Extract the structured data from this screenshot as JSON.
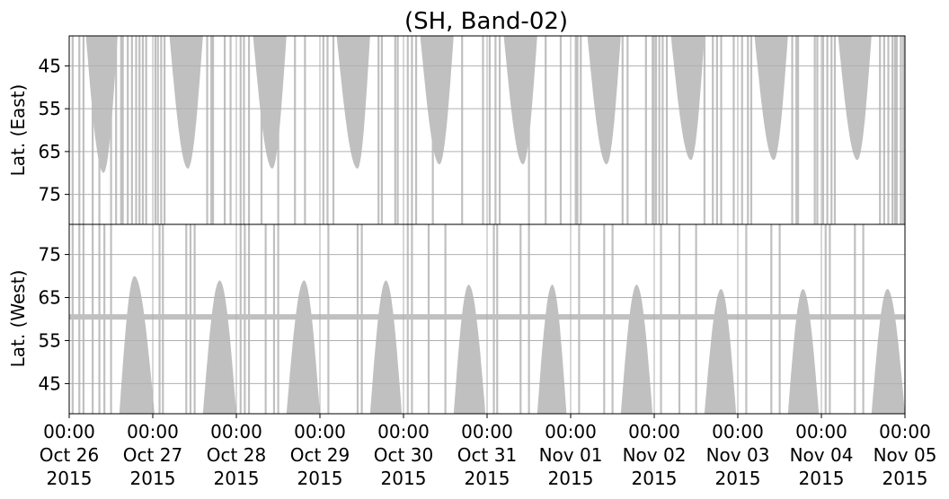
{
  "chart_data": {
    "type": "heatmap",
    "title": "(SH, Band-02)",
    "x": {
      "range": [
        0,
        10
      ],
      "tick_values": [
        0,
        1,
        2,
        3,
        4,
        5,
        6,
        7,
        8,
        9,
        10
      ],
      "tick_labels": [
        {
          "time": "00:00",
          "date": "Oct 26",
          "year": "2015"
        },
        {
          "time": "00:00",
          "date": "Oct 27",
          "year": "2015"
        },
        {
          "time": "00:00",
          "date": "Oct 28",
          "year": "2015"
        },
        {
          "time": "00:00",
          "date": "Oct 29",
          "year": "2015"
        },
        {
          "time": "00:00",
          "date": "Oct 30",
          "year": "2015"
        },
        {
          "time": "00:00",
          "date": "Oct 31",
          "year": "2015"
        },
        {
          "time": "00:00",
          "date": "Nov 01",
          "year": "2015"
        },
        {
          "time": "00:00",
          "date": "Nov 02",
          "year": "2015"
        },
        {
          "time": "00:00",
          "date": "Nov 03",
          "year": "2015"
        },
        {
          "time": "00:00",
          "date": "Nov 04",
          "year": "2015"
        },
        {
          "time": "00:00",
          "date": "Nov 05",
          "year": "2015"
        }
      ],
      "grid": true
    },
    "panels": [
      {
        "name": "east",
        "ylabel": "Lat. (East)",
        "ylim": [
          38,
          82
        ],
        "y_inverted": true,
        "yticks": [
          45,
          55,
          65,
          75
        ],
        "ytick_labels": [
          "45",
          "55",
          "65",
          "75"
        ],
        "grid": true,
        "lobes": [
          {
            "start": 0.2,
            "peak": 0.41,
            "end": 0.58,
            "max_lat": 70
          },
          {
            "start": 1.2,
            "peak": 1.42,
            "end": 1.6,
            "max_lat": 69
          },
          {
            "start": 2.2,
            "peak": 2.43,
            "end": 2.6,
            "max_lat": 69
          },
          {
            "start": 3.2,
            "peak": 3.45,
            "end": 3.6,
            "max_lat": 69
          },
          {
            "start": 4.2,
            "peak": 4.43,
            "end": 4.6,
            "max_lat": 68
          },
          {
            "start": 5.2,
            "peak": 5.43,
            "end": 5.6,
            "max_lat": 68
          },
          {
            "start": 6.2,
            "peak": 6.43,
            "end": 6.6,
            "max_lat": 68
          },
          {
            "start": 7.2,
            "peak": 7.44,
            "end": 7.6,
            "max_lat": 67
          },
          {
            "start": 8.2,
            "peak": 8.43,
            "end": 8.6,
            "max_lat": 67
          },
          {
            "start": 9.2,
            "peak": 9.43,
            "end": 9.6,
            "max_lat": 67
          }
        ],
        "band": null
      },
      {
        "name": "west",
        "ylabel": "Lat. (West)",
        "ylim": [
          38,
          82
        ],
        "y_inverted": false,
        "yticks": [
          45,
          55,
          65,
          75
        ],
        "ytick_labels": [
          "45",
          "55",
          "65",
          "75"
        ],
        "grid": true,
        "lobes": [
          {
            "start": 0.6,
            "peak": 0.78,
            "end": 1.02,
            "max_lat": 70
          },
          {
            "start": 1.6,
            "peak": 1.8,
            "end": 2.0,
            "max_lat": 69
          },
          {
            "start": 2.6,
            "peak": 2.81,
            "end": 3.0,
            "max_lat": 69
          },
          {
            "start": 3.6,
            "peak": 3.79,
            "end": 3.98,
            "max_lat": 69
          },
          {
            "start": 4.6,
            "peak": 4.78,
            "end": 4.98,
            "max_lat": 68
          },
          {
            "start": 5.6,
            "peak": 5.78,
            "end": 5.95,
            "max_lat": 68
          },
          {
            "start": 6.6,
            "peak": 6.79,
            "end": 6.98,
            "max_lat": 68
          },
          {
            "start": 7.6,
            "peak": 7.8,
            "end": 7.98,
            "max_lat": 67
          },
          {
            "start": 8.6,
            "peak": 8.78,
            "end": 8.97,
            "max_lat": 67
          },
          {
            "start": 9.6,
            "peak": 9.79,
            "end": 10.0,
            "max_lat": 67
          }
        ],
        "band": {
          "lat": 60.5,
          "from": 0,
          "to": 10
        }
      }
    ],
    "scan_line_x_east": [
      0.04,
      0.12,
      0.17,
      0.28,
      0.36,
      0.5,
      0.56,
      0.62,
      0.64,
      0.7,
      0.75,
      0.8,
      0.84,
      0.88,
      0.92,
      1.03,
      1.06,
      1.1,
      1.14,
      1.65,
      1.7,
      1.72,
      1.86,
      1.93,
      2.05,
      2.09,
      2.15,
      2.3,
      2.5,
      2.7,
      2.82,
      3.04,
      3.09,
      3.16,
      3.7,
      3.74,
      3.9,
      3.93,
      4.05,
      4.1,
      4.15,
      4.35,
      4.7,
      4.95,
      5.03,
      5.1,
      5.15,
      5.5,
      5.7,
      5.88,
      6.06,
      6.08,
      6.12,
      6.62,
      6.68,
      6.9,
      6.98,
      7.02,
      7.06,
      7.1,
      7.15,
      7.6,
      7.7,
      7.75,
      7.8,
      7.95,
      8.05,
      8.12,
      8.16,
      8.65,
      8.7,
      8.72,
      8.92,
      8.95,
      9.02,
      9.07,
      9.12,
      9.16,
      9.7,
      9.75,
      9.8,
      9.85,
      9.88,
      9.9,
      9.95,
      9.98
    ],
    "scan_line_x_west": [
      0.04,
      0.12,
      0.17,
      0.28,
      0.36,
      0.42,
      0.5,
      1.08,
      1.12,
      1.4,
      1.45,
      1.5,
      2.05,
      2.1,
      2.15,
      2.35,
      2.45,
      2.5,
      3.1,
      3.45,
      3.5,
      4.05,
      4.1,
      4.3,
      4.5,
      5.08,
      5.12,
      5.4,
      5.5,
      6.1,
      6.4,
      6.5,
      7.08,
      7.3,
      7.5,
      8.1,
      8.4,
      8.5,
      9.05,
      9.1,
      9.4,
      9.5
    ],
    "colors": {
      "fill": "#c0c0c0",
      "grid": "#b0b0b0",
      "axis": "#000000",
      "background": "#ffffff"
    }
  }
}
